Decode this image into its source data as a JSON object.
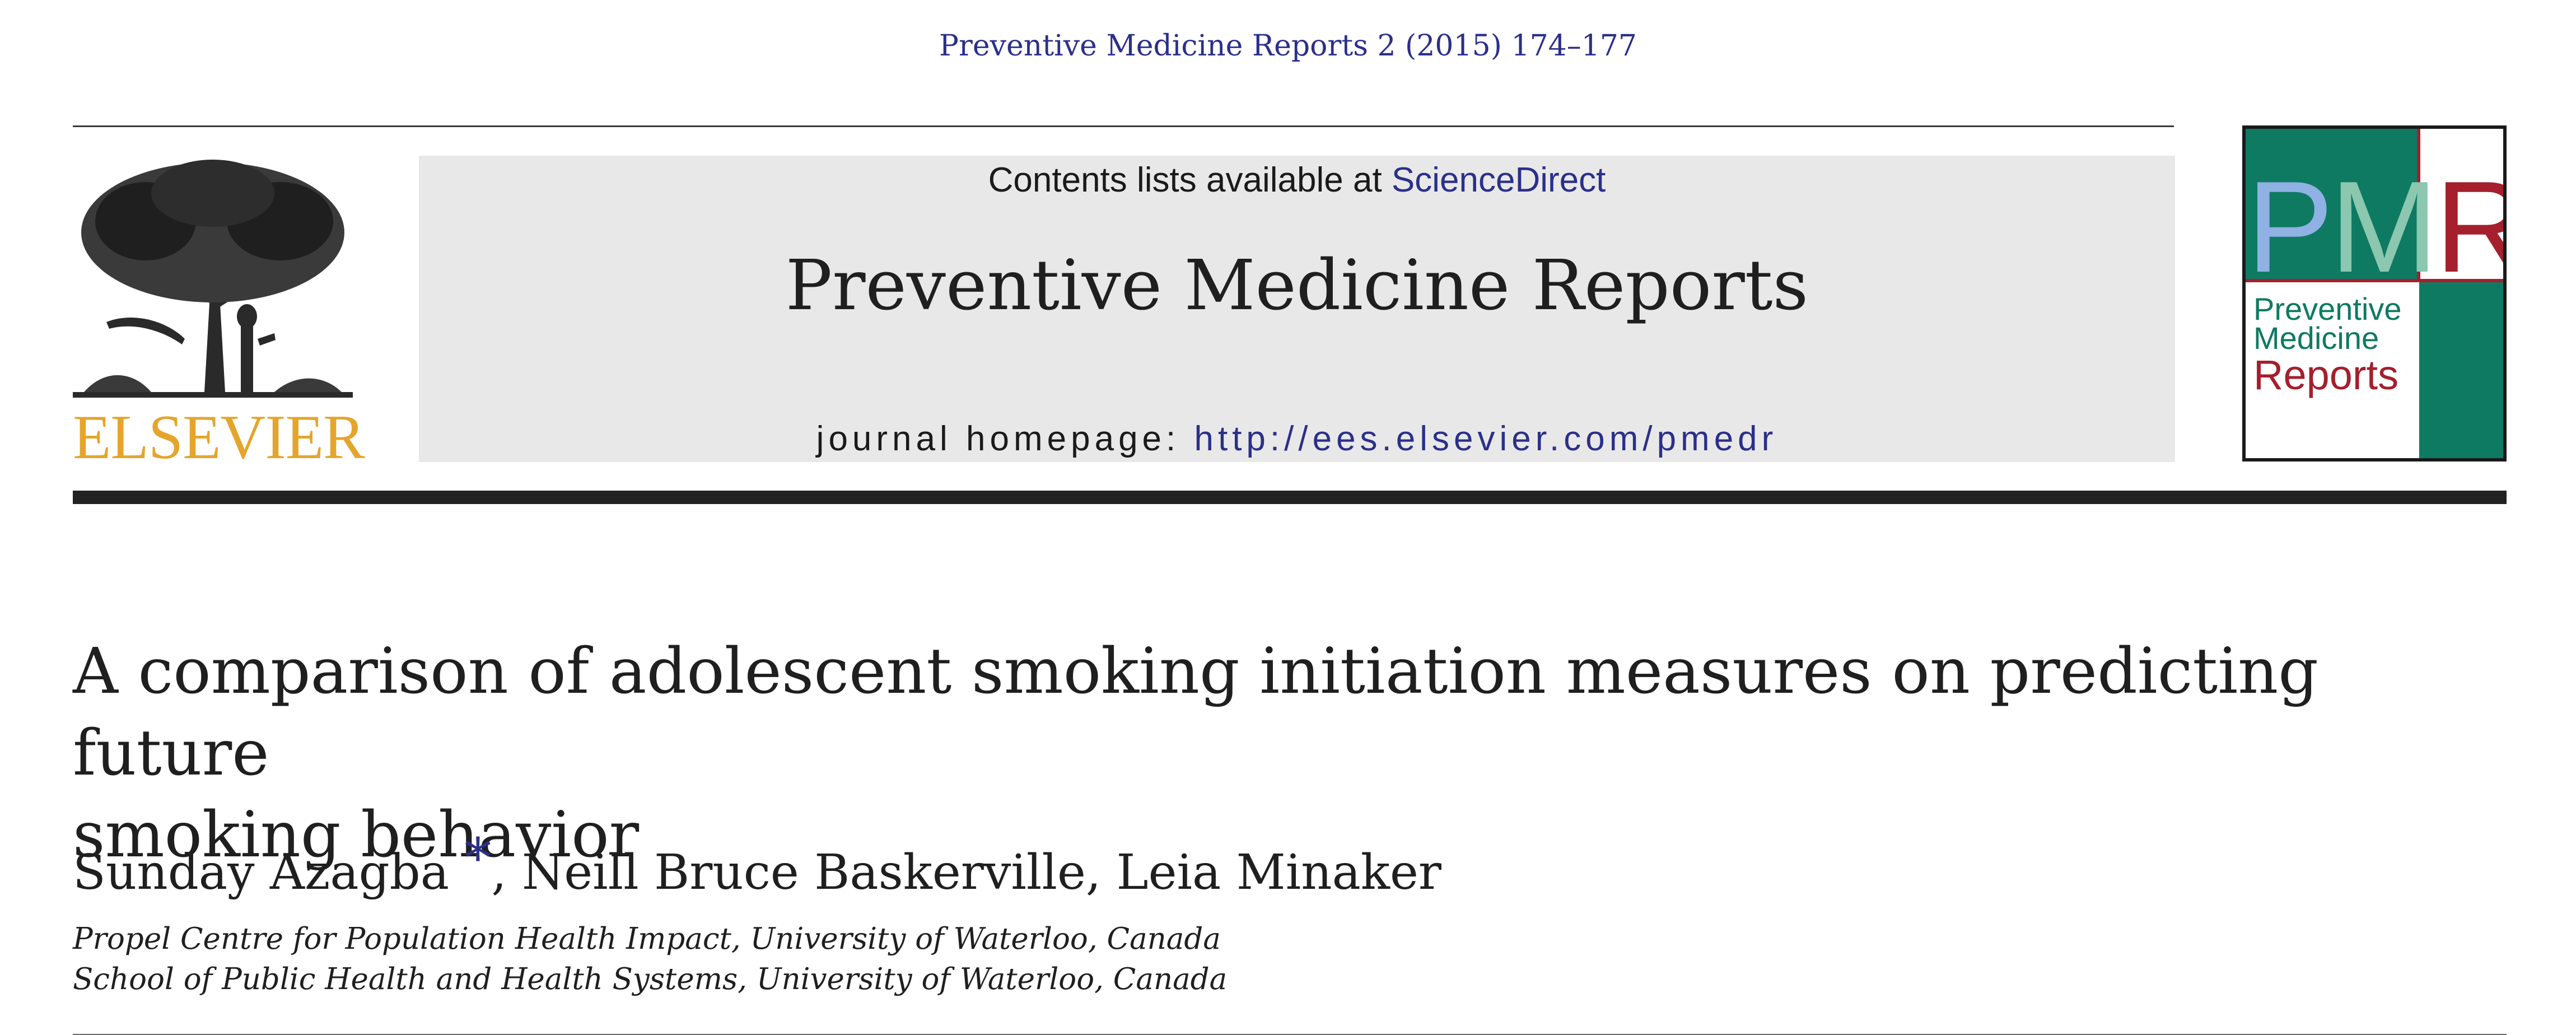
{
  "journal_reference": "Preventive Medicine Reports 2 (2015) 174–177",
  "publisher": {
    "logo_icon": "elsevier-tree-logo",
    "wordmark": "ELSEVIER",
    "wordmark_color": "#e5a52c"
  },
  "banner": {
    "contents_prefix": "Contents lists available at ",
    "contents_link": "ScienceDirect",
    "journal_title": "Preventive Medicine Reports",
    "homepage_label": "journal homepage: ",
    "homepage_url": "http://ees.elsevier.com/pmedr"
  },
  "cover": {
    "logo_letters": [
      "P",
      "M",
      "R"
    ],
    "line1": "Preventive",
    "line2": "Medicine",
    "line3": "Reports",
    "colors": {
      "teal": "#0e7a62",
      "red": "#a51f2d",
      "light_blue": "#8fb1e4",
      "light_green": "#8cc7b0"
    }
  },
  "article": {
    "title_line1": "A comparison of adolescent smoking initiation measures on predicting future",
    "title_line2": "smoking behavior",
    "author1": "Sunday Azagba",
    "corresponding_mark": "*",
    "other_authors": ", Neill Bruce Baskerville, Leia Minaker",
    "affiliation1": "Propel Centre for Population Health Impact, University of Waterloo, Canada",
    "affiliation2": "School of Public Health and Health Systems, University of Waterloo, Canada"
  },
  "link_color": "#2b2f8a"
}
